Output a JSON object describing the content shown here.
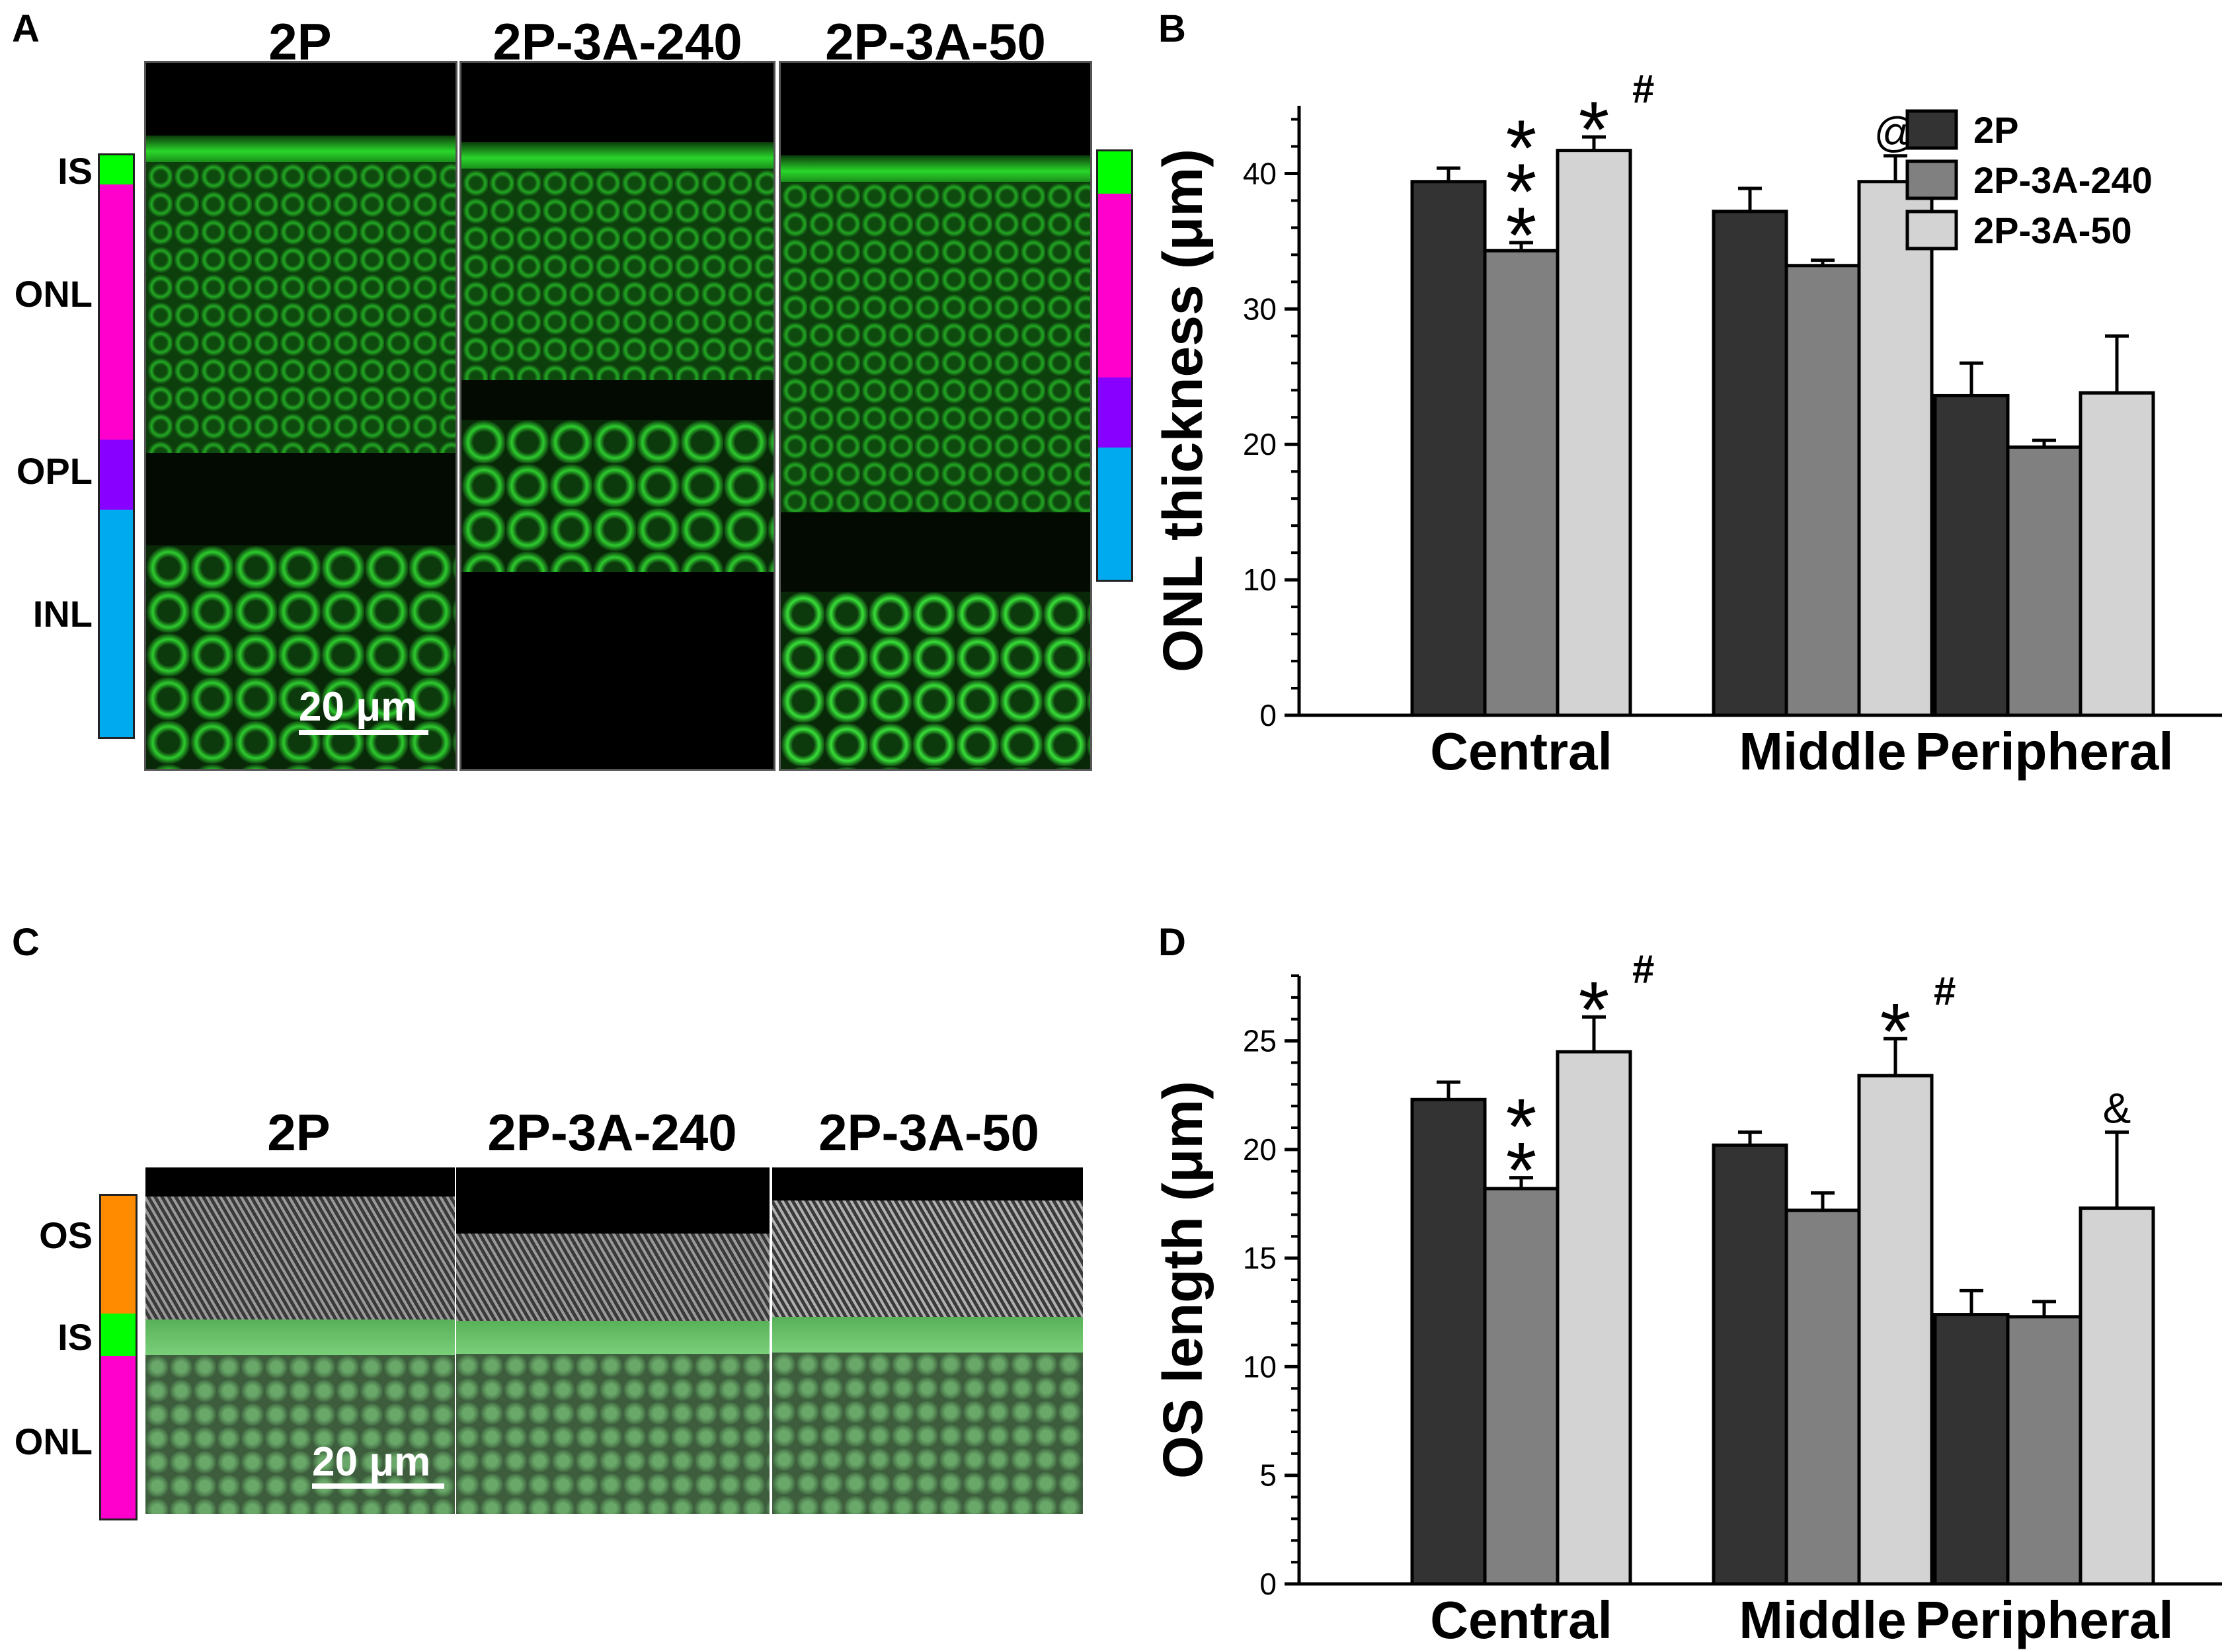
{
  "panels": {
    "A": {
      "letter": "A",
      "image_titles": [
        "2P",
        "2P-3A-240",
        "2P-3A-50"
      ],
      "layers": [
        {
          "label": "IS",
          "color": "#00ff00"
        },
        {
          "label": "ONL",
          "color": "#ff00cc"
        },
        {
          "label": "OPL",
          "color": "#8800ff"
        },
        {
          "label": "INL",
          "color": "#00aaee"
        }
      ],
      "scalebar": "20 μm"
    },
    "C": {
      "letter": "C",
      "image_titles": [
        "2P",
        "2P-3A-240",
        "2P-3A-50"
      ],
      "layers": [
        {
          "label": "OS",
          "color": "#ff8c00"
        },
        {
          "label": "IS",
          "color": "#00ff00"
        },
        {
          "label": "ONL",
          "color": "#ff00cc"
        }
      ],
      "scalebar": "20 μm"
    }
  },
  "chart_data": [
    {
      "panel": "B",
      "type": "bar",
      "ylabel": "ONL thickness (μm)",
      "categories": [
        "Central",
        "Middle",
        "Peripheral"
      ],
      "ylim": [
        0,
        45
      ],
      "yticks": [
        0,
        10,
        20,
        30,
        40
      ],
      "legend": "top-right",
      "series": [
        {
          "name": "2P",
          "color": "#333333",
          "values": [
            39.4,
            37.2,
            23.6
          ],
          "errors": [
            1.0,
            1.7,
            2.4
          ]
        },
        {
          "name": "2P-3A-240",
          "color": "#808080",
          "values": [
            34.3,
            33.2,
            19.8
          ],
          "errors": [
            0.6,
            0.4,
            0.5
          ]
        },
        {
          "name": "2P-3A-50",
          "color": "#d3d3d3",
          "values": [
            41.7,
            39.4,
            23.8
          ],
          "errors": [
            1.0,
            1.9,
            4.2
          ]
        }
      ],
      "annotations": [
        {
          "category": 0,
          "series": 1,
          "text": "*",
          "lines": 3
        },
        {
          "category": 0,
          "series": 2,
          "text": "*",
          "lines": 1,
          "suffix": "#"
        },
        {
          "category": 1,
          "series": 2,
          "text": "@",
          "lines": 1
        }
      ]
    },
    {
      "panel": "D",
      "type": "bar",
      "ylabel": "OS length (μm)",
      "categories": [
        "Central",
        "Middle",
        "Peripheral"
      ],
      "ylim": [
        0,
        28
      ],
      "yticks": [
        0,
        5,
        10,
        15,
        20,
        25
      ],
      "series": [
        {
          "name": "2P",
          "color": "#333333",
          "values": [
            22.3,
            20.2,
            12.4
          ],
          "errors": [
            0.8,
            0.6,
            1.1
          ]
        },
        {
          "name": "2P-3A-240",
          "color": "#808080",
          "values": [
            18.2,
            17.2,
            12.3
          ],
          "errors": [
            0.5,
            0.8,
            0.7
          ]
        },
        {
          "name": "2P-3A-50",
          "color": "#d3d3d3",
          "values": [
            24.5,
            23.4,
            17.3
          ],
          "errors": [
            1.6,
            1.7,
            3.5
          ]
        }
      ],
      "annotations": [
        {
          "category": 0,
          "series": 1,
          "text": "*",
          "lines": 2
        },
        {
          "category": 0,
          "series": 2,
          "text": "*",
          "lines": 1,
          "suffix": "#"
        },
        {
          "category": 1,
          "series": 2,
          "text": "*",
          "lines": 1,
          "suffix": "#"
        },
        {
          "category": 2,
          "series": 2,
          "text": "&",
          "lines": 1
        }
      ]
    }
  ]
}
